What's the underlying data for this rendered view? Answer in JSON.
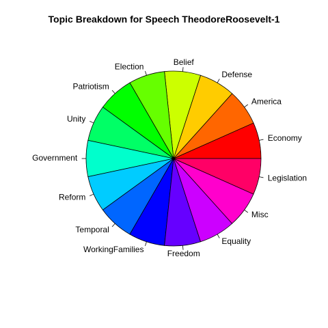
{
  "chart_data": {
    "type": "pie",
    "title": "Topic Breakdown for Speech TheodoreRoosevelt-1",
    "slices": [
      {
        "label": "Economy",
        "value": 1,
        "color": "#FF0000"
      },
      {
        "label": "America",
        "value": 1,
        "color": "#FF6600"
      },
      {
        "label": "Defense",
        "value": 1,
        "color": "#FFCC00"
      },
      {
        "label": "Belief",
        "value": 1,
        "color": "#CCFF00"
      },
      {
        "label": "Election",
        "value": 1,
        "color": "#66FF00"
      },
      {
        "label": "Patriotism",
        "value": 1,
        "color": "#00FF00"
      },
      {
        "label": "Unity",
        "value": 1,
        "color": "#00FF66"
      },
      {
        "label": "Government",
        "value": 1,
        "color": "#00FFCC"
      },
      {
        "label": "Reform",
        "value": 1,
        "color": "#00CCFF"
      },
      {
        "label": "Temporal",
        "value": 1,
        "color": "#0066FF"
      },
      {
        "label": "WorkingFamilies",
        "value": 1,
        "color": "#0000FF"
      },
      {
        "label": "Freedom",
        "value": 1,
        "color": "#6600FF"
      },
      {
        "label": "Equality",
        "value": 1,
        "color": "#CC00FF"
      },
      {
        "label": "Misc",
        "value": 1,
        "color": "#FF00CC"
      },
      {
        "label": "Legislation",
        "value": 1,
        "color": "#FF0066"
      }
    ]
  }
}
